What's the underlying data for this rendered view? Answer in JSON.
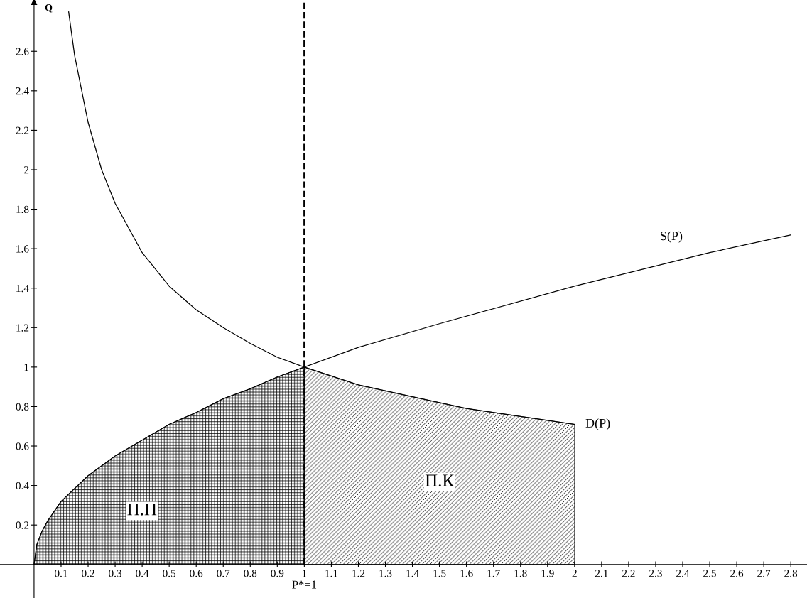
{
  "chart_data": {
    "type": "line",
    "ylabel": "Q",
    "series": [
      {
        "name": "D(P)",
        "color": "#000000",
        "x": [
          0.128,
          0.15,
          0.2,
          0.25,
          0.3,
          0.4,
          0.5,
          0.6,
          0.7,
          0.8,
          0.9,
          1,
          1.2,
          1.4,
          1.6,
          1.8,
          2
        ],
        "values": [
          2.8,
          2.58,
          2.24,
          2.0,
          1.83,
          1.58,
          1.41,
          1.29,
          1.2,
          1.12,
          1.05,
          1.0,
          0.91,
          0.85,
          0.79,
          0.75,
          0.71
        ]
      },
      {
        "name": "S(P)",
        "color": "#000000",
        "x": [
          0,
          0.01,
          0.03,
          0.05,
          0.1,
          0.2,
          0.3,
          0.4,
          0.5,
          0.6,
          0.7,
          0.8,
          0.9,
          1,
          1.2,
          1.5,
          2,
          2.5,
          2.8
        ],
        "values": [
          0,
          0.1,
          0.17,
          0.22,
          0.32,
          0.45,
          0.55,
          0.63,
          0.71,
          0.77,
          0.84,
          0.89,
          0.95,
          1.0,
          1.1,
          1.22,
          1.41,
          1.58,
          1.67
        ]
      },
      {
        "name": "П.П",
        "type": "area",
        "color": "#000000",
        "x": [
          0,
          0.01,
          0.03,
          0.05,
          0.1,
          0.2,
          0.3,
          0.4,
          0.5,
          0.6,
          0.7,
          0.8,
          0.9,
          1
        ],
        "values": [
          0,
          0.1,
          0.17,
          0.22,
          0.32,
          0.45,
          0.55,
          0.63,
          0.71,
          0.77,
          0.84,
          0.89,
          0.95,
          1.0
        ]
      },
      {
        "name": "П.К",
        "type": "area",
        "color": "#000000",
        "x": [
          1,
          1.2,
          1.4,
          1.6,
          1.8,
          2
        ],
        "values": [
          1.0,
          0.91,
          0.85,
          0.79,
          0.75,
          0.71
        ]
      }
    ],
    "xlim": [
      -0.126,
      2.86
    ],
    "ylim": [
      -0.17,
      2.86
    ],
    "xticks": [
      0.1,
      0.2,
      0.3,
      0.4,
      0.5,
      0.6,
      0.7,
      0.8,
      0.9,
      1,
      1.1,
      1.2,
      1.3,
      1.4,
      1.5,
      1.6,
      1.7,
      1.8,
      1.9,
      2,
      2.1,
      2.2,
      2.3,
      2.4,
      2.5,
      2.6,
      2.7,
      2.8
    ],
    "yticks": [
      0.2,
      0.4,
      0.6,
      0.8,
      1,
      1.2,
      1.4,
      1.6,
      1.8,
      2,
      2.2,
      2.4,
      2.6
    ],
    "ref_lines": [
      {
        "axis": "x",
        "value": 1,
        "label": "P*=1",
        "line_style": "dashed",
        "color": "#000000"
      }
    ],
    "grid": false,
    "legend": false
  }
}
